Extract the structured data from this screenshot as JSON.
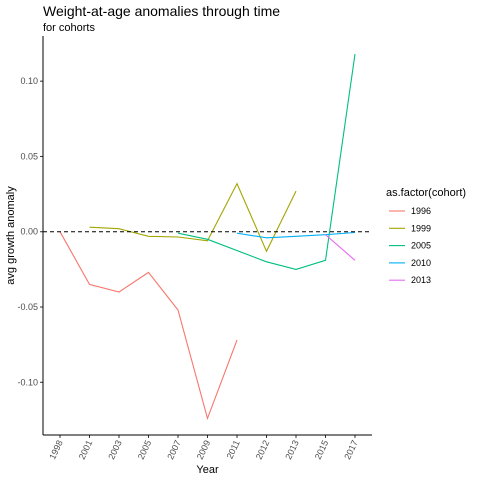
{
  "chart_data": {
    "type": "line",
    "title": "Weight-at-age anomalies through time",
    "subtitle": "for cohorts",
    "xlabel": "Year",
    "ylabel": "avg growth anomaly",
    "categories": [
      "1998",
      "2001",
      "2003",
      "2005",
      "2007",
      "2009",
      "2011",
      "2012",
      "2013",
      "2015",
      "2017"
    ],
    "ylim": [
      -0.135,
      0.13
    ],
    "y_ticks": [
      -0.1,
      -0.05,
      0.0,
      0.05,
      0.1
    ],
    "y_tick_labels": [
      "-0.10",
      "-0.05",
      "0.00",
      "0.05",
      "0.10"
    ],
    "reference_line": 0,
    "grid": false,
    "legend_title": "as.factor(cohort)",
    "legend_position": "right",
    "series": [
      {
        "name": "1996",
        "color": "#F8766D",
        "points": [
          [
            "1998",
            0.0
          ],
          [
            "2001",
            -0.035
          ],
          [
            "2003",
            -0.04
          ],
          [
            "2005",
            -0.027
          ],
          [
            "2007",
            -0.052
          ],
          [
            "2009",
            -0.124
          ],
          [
            "2011",
            -0.072
          ]
        ]
      },
      {
        "name": "1999",
        "color": "#A3A500",
        "points": [
          [
            "2001",
            0.003
          ],
          [
            "2003",
            0.002
          ],
          [
            "2005",
            -0.003
          ],
          [
            "2007",
            -0.0035
          ],
          [
            "2009",
            -0.006
          ],
          [
            "2011",
            0.032
          ],
          [
            "2012",
            -0.013
          ],
          [
            "2013",
            0.027
          ]
        ]
      },
      {
        "name": "2005",
        "color": "#00BF7D",
        "points": [
          [
            "2007",
            -0.001
          ],
          [
            "2009",
            -0.005
          ],
          [
            "2012",
            -0.02
          ],
          [
            "2013",
            -0.025
          ],
          [
            "2015",
            -0.019
          ],
          [
            "2017",
            0.118
          ]
        ]
      },
      {
        "name": "2010",
        "color": "#00B0F6",
        "points": [
          [
            "2011",
            -0.001
          ],
          [
            "2012",
            -0.004
          ],
          [
            "2013",
            -0.003
          ],
          [
            "2015",
            -0.002
          ],
          [
            "2017",
            -0.0005
          ]
        ]
      },
      {
        "name": "2013",
        "color": "#E76BF3",
        "points": [
          [
            "2015",
            -0.002
          ],
          [
            "2017",
            -0.019
          ]
        ]
      }
    ]
  }
}
